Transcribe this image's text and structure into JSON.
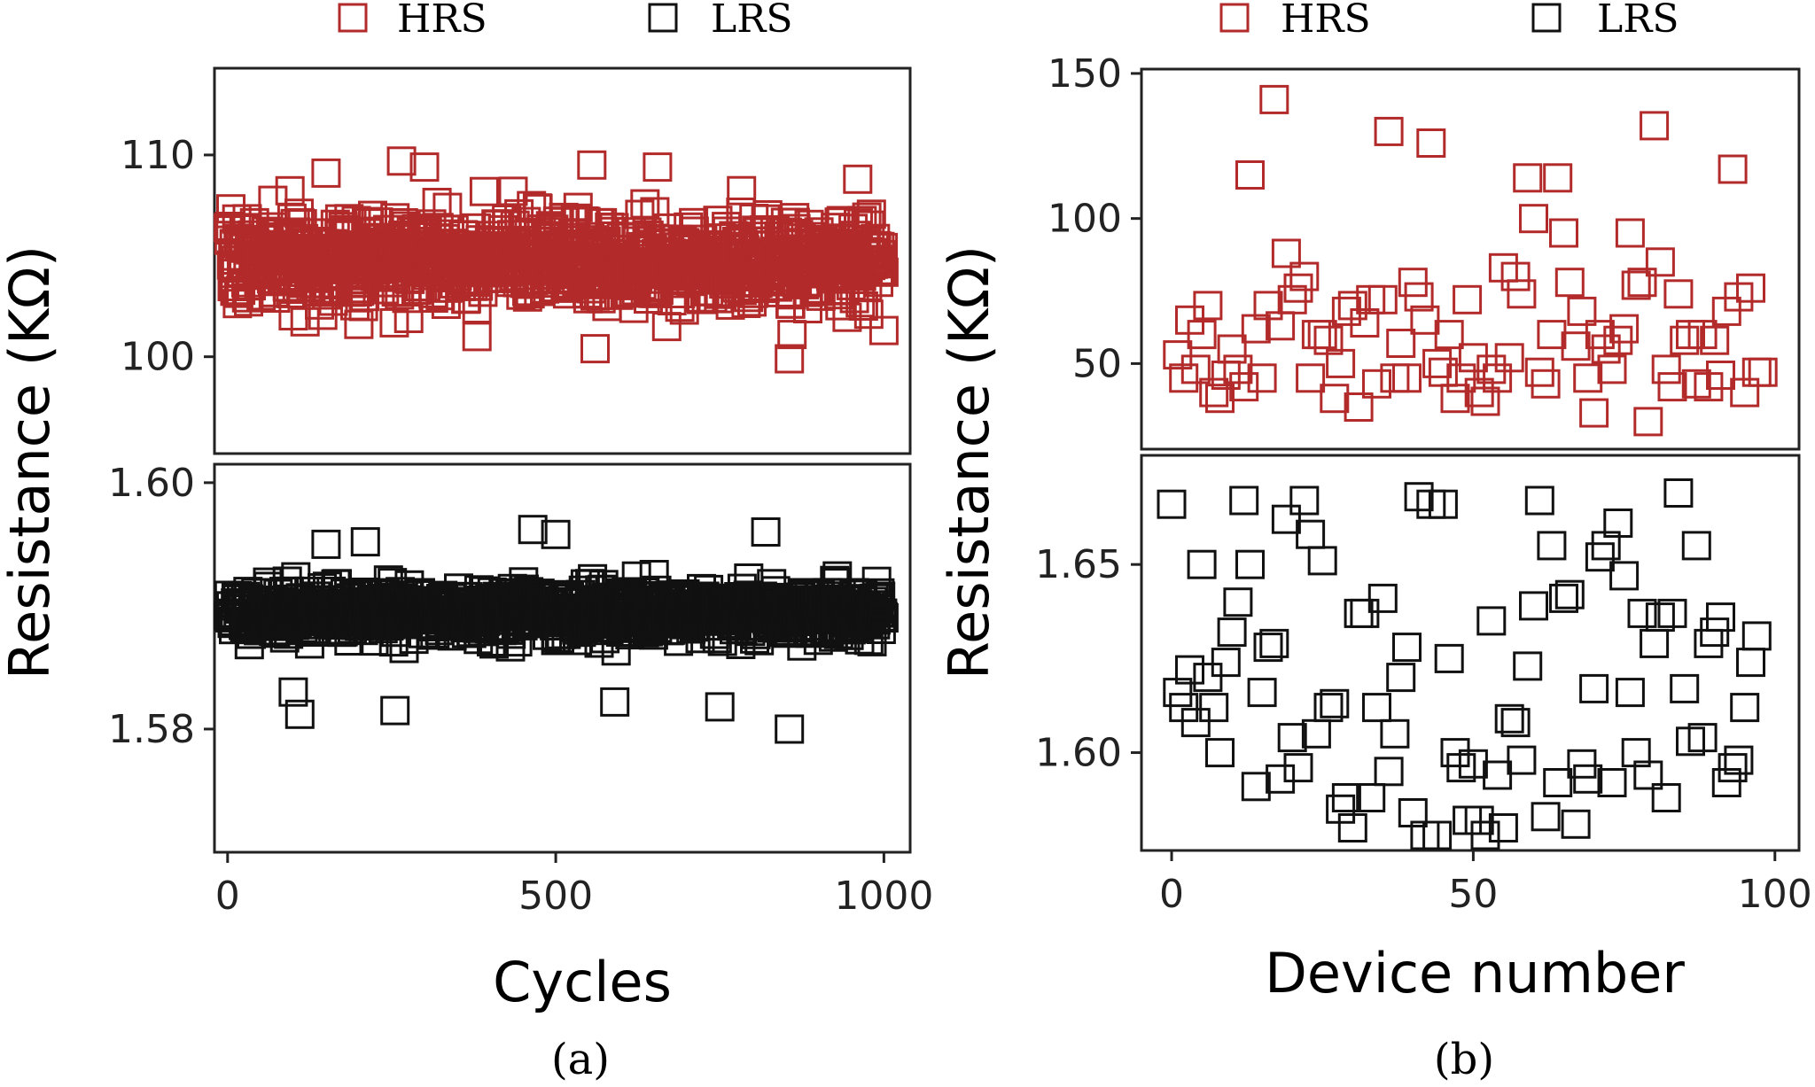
{
  "colors": {
    "hrs": "#b22a2a",
    "lrs": "#111111"
  },
  "legend": {
    "a": [
      {
        "label": "HRS",
        "color": "#b22a2a"
      },
      {
        "label": "LRS",
        "color": "#111111"
      }
    ],
    "b": [
      {
        "label": "HRS",
        "color": "#b22a2a"
      },
      {
        "label": "LRS",
        "color": "#111111"
      }
    ]
  },
  "captions": {
    "a": "(a)",
    "b": "(b)"
  },
  "chart_data": [
    {
      "id": "a",
      "type": "scatter",
      "title": "",
      "xlabel": "Cycles",
      "ylabel": "Resistance (KΩ)",
      "x_range": [
        -20,
        1040
      ],
      "x_ticks": [
        0,
        500,
        1000
      ],
      "x_tick_labels": [
        "0",
        "500",
        "1000"
      ],
      "panels": [
        {
          "name": "HRS",
          "ylim": [
            95.2,
            114.3
          ],
          "y_ticks": [
            100,
            110
          ],
          "y_tick_labels": [
            "100",
            "110"
          ],
          "generator": {
            "n": 1000,
            "x_start": 1,
            "x_end": 1000,
            "center": 104.8,
            "spread": 2.2,
            "min": 100.1,
            "max": 109.6,
            "seed": 7
          },
          "points": [
            [
              856,
              99.9
            ],
            [
              560,
              100.4
            ],
            [
              860,
              101.1
            ],
            [
              1000,
              101.3
            ],
            [
              380,
              101.0
            ],
            [
              200,
              101.6
            ],
            [
              265,
              109.7
            ],
            [
              300,
              109.4
            ],
            [
              150,
              109.1
            ],
            [
              655,
              109.4
            ],
            [
              555,
              109.5
            ],
            [
              960,
              108.8
            ]
          ]
        },
        {
          "name": "LRS",
          "ylim": [
            1.57,
            1.6015
          ],
          "y_ticks": [
            1.58,
            1.6
          ],
          "y_tick_labels": [
            "1.58",
            "1.60"
          ],
          "generator": {
            "n": 1000,
            "x_start": 1,
            "x_end": 1000,
            "center": 1.5895,
            "spread": 0.0021,
            "min": 1.5832,
            "max": 1.5955,
            "seed": 11
          },
          "points": [
            [
              856,
              1.58
            ],
            [
              110,
              1.5812
            ],
            [
              255,
              1.5815
            ],
            [
              590,
              1.5822
            ],
            [
              750,
              1.5818
            ],
            [
              100,
              1.583
            ],
            [
              500,
              1.5958
            ],
            [
              465,
              1.5962
            ],
            [
              820,
              1.596
            ],
            [
              150,
              1.595
            ],
            [
              210,
              1.5952
            ]
          ]
        }
      ]
    },
    {
      "id": "b",
      "type": "scatter",
      "title": "",
      "xlabel": "Device number",
      "ylabel": "Resistance (KΩ)",
      "x_range": [
        -5,
        104
      ],
      "x_ticks": [
        0,
        50,
        100
      ],
      "x_tick_labels": [
        "0",
        "50",
        "100"
      ],
      "panels": [
        {
          "name": "HRS",
          "ylim": [
            20.5,
            151.5
          ],
          "y_ticks": [
            50,
            100,
            150
          ],
          "y_tick_labels": [
            "50",
            "100",
            "150"
          ],
          "points": [
            [
              1,
              53
            ],
            [
              2,
              45
            ],
            [
              3,
              65
            ],
            [
              4,
              48
            ],
            [
              5,
              60
            ],
            [
              6,
              70
            ],
            [
              7,
              40
            ],
            [
              8,
              38
            ],
            [
              9,
              46
            ],
            [
              10,
              55
            ],
            [
              11,
              48
            ],
            [
              12,
              42
            ],
            [
              13,
              115
            ],
            [
              14,
              62
            ],
            [
              15,
              45
            ],
            [
              16,
              70
            ],
            [
              17,
              141
            ],
            [
              18,
              63
            ],
            [
              19,
              88
            ],
            [
              20,
              72
            ],
            [
              21,
              76
            ],
            [
              22,
              80
            ],
            [
              23,
              45
            ],
            [
              24,
              60
            ],
            [
              25,
              60
            ],
            [
              26,
              58
            ],
            [
              27,
              38
            ],
            [
              28,
              50
            ],
            [
              29,
              68
            ],
            [
              30,
              70
            ],
            [
              31,
              35
            ],
            [
              32,
              64
            ],
            [
              33,
              72
            ],
            [
              34,
              43
            ],
            [
              35,
              72
            ],
            [
              36,
              130
            ],
            [
              37,
              45
            ],
            [
              38,
              57
            ],
            [
              39,
              45
            ],
            [
              40,
              78
            ],
            [
              41,
              73
            ],
            [
              42,
              65
            ],
            [
              43,
              126
            ],
            [
              44,
              50
            ],
            [
              45,
              47
            ],
            [
              46,
              60
            ],
            [
              47,
              38
            ],
            [
              48,
              45
            ],
            [
              49,
              72
            ],
            [
              50,
              52
            ],
            [
              51,
              40
            ],
            [
              52,
              37
            ],
            [
              53,
              48
            ],
            [
              54,
              45
            ],
            [
              55,
              83
            ],
            [
              56,
              52
            ],
            [
              57,
              80
            ],
            [
              58,
              74
            ],
            [
              59,
              114
            ],
            [
              60,
              100
            ],
            [
              61,
              47
            ],
            [
              62,
              43
            ],
            [
              63,
              60
            ],
            [
              64,
              114
            ],
            [
              65,
              95
            ],
            [
              66,
              78
            ],
            [
              67,
              56
            ],
            [
              68,
              68
            ],
            [
              69,
              45
            ],
            [
              70,
              33
            ],
            [
              71,
              60
            ],
            [
              72,
              55
            ],
            [
              73,
              48
            ],
            [
              74,
              58
            ],
            [
              75,
              62
            ],
            [
              76,
              95
            ],
            [
              77,
              77
            ],
            [
              78,
              78
            ],
            [
              79,
              30
            ],
            [
              80,
              132
            ],
            [
              81,
              85
            ],
            [
              82,
              48
            ],
            [
              83,
              42
            ],
            [
              84,
              74
            ],
            [
              85,
              58
            ],
            [
              86,
              60
            ],
            [
              87,
              43
            ],
            [
              88,
              60
            ],
            [
              89,
              42
            ],
            [
              90,
              58
            ],
            [
              91,
              46
            ],
            [
              92,
              68
            ],
            [
              93,
              117
            ],
            [
              94,
              73
            ],
            [
              95,
              40
            ],
            [
              96,
              76
            ],
            [
              97,
              47
            ],
            [
              98,
              47
            ]
          ]
        },
        {
          "name": "LRS",
          "ylim": [
            1.574,
            1.679
          ],
          "y_ticks": [
            1.6,
            1.65
          ],
          "y_tick_labels": [
            "1.60",
            "1.65"
          ],
          "points": [
            [
              0,
              1.666
            ],
            [
              1,
              1.616
            ],
            [
              2,
              1.612
            ],
            [
              3,
              1.622
            ],
            [
              4,
              1.608
            ],
            [
              5,
              1.65
            ],
            [
              6,
              1.62
            ],
            [
              7,
              1.612
            ],
            [
              8,
              1.6
            ],
            [
              9,
              1.624
            ],
            [
              10,
              1.632
            ],
            [
              11,
              1.64
            ],
            [
              12,
              1.667
            ],
            [
              13,
              1.65
            ],
            [
              14,
              1.591
            ],
            [
              15,
              1.616
            ],
            [
              16,
              1.628
            ],
            [
              17,
              1.629
            ],
            [
              18,
              1.593
            ],
            [
              19,
              1.662
            ],
            [
              20,
              1.604
            ],
            [
              21,
              1.596
            ],
            [
              22,
              1.667
            ],
            [
              23,
              1.658
            ],
            [
              24,
              1.605
            ],
            [
              25,
              1.651
            ],
            [
              26,
              1.612
            ],
            [
              27,
              1.613
            ],
            [
              28,
              1.585
            ],
            [
              29,
              1.588
            ],
            [
              30,
              1.58
            ],
            [
              31,
              1.637
            ],
            [
              32,
              1.637
            ],
            [
              33,
              1.588
            ],
            [
              34,
              1.612
            ],
            [
              35,
              1.641
            ],
            [
              36,
              1.595
            ],
            [
              37,
              1.605
            ],
            [
              38,
              1.62
            ],
            [
              39,
              1.628
            ],
            [
              40,
              1.584
            ],
            [
              41,
              1.668
            ],
            [
              42,
              1.578
            ],
            [
              43,
              1.666
            ],
            [
              44,
              1.578
            ],
            [
              45,
              1.666
            ],
            [
              46,
              1.625
            ],
            [
              47,
              1.6
            ],
            [
              48,
              1.596
            ],
            [
              49,
              1.582
            ],
            [
              50,
              1.597
            ],
            [
              51,
              1.582
            ],
            [
              52,
              1.578
            ],
            [
              53,
              1.635
            ],
            [
              54,
              1.594
            ],
            [
              55,
              1.58
            ],
            [
              56,
              1.609
            ],
            [
              57,
              1.608
            ],
            [
              58,
              1.598
            ],
            [
              59,
              1.623
            ],
            [
              60,
              1.639
            ],
            [
              61,
              1.667
            ],
            [
              62,
              1.583
            ],
            [
              63,
              1.655
            ],
            [
              64,
              1.592
            ],
            [
              65,
              1.641
            ],
            [
              66,
              1.642
            ],
            [
              67,
              1.581
            ],
            [
              68,
              1.597
            ],
            [
              69,
              1.593
            ],
            [
              70,
              1.617
            ],
            [
              71,
              1.652
            ],
            [
              72,
              1.655
            ],
            [
              73,
              1.592
            ],
            [
              74,
              1.661
            ],
            [
              75,
              1.647
            ],
            [
              76,
              1.616
            ],
            [
              77,
              1.6
            ],
            [
              78,
              1.637
            ],
            [
              79,
              1.594
            ],
            [
              80,
              1.629
            ],
            [
              81,
              1.636
            ],
            [
              82,
              1.588
            ],
            [
              83,
              1.637
            ],
            [
              84,
              1.669
            ],
            [
              85,
              1.617
            ],
            [
              86,
              1.603
            ],
            [
              87,
              1.655
            ],
            [
              88,
              1.604
            ],
            [
              89,
              1.629
            ],
            [
              90,
              1.632
            ],
            [
              91,
              1.636
            ],
            [
              92,
              1.592
            ],
            [
              93,
              1.596
            ],
            [
              94,
              1.598
            ],
            [
              95,
              1.612
            ],
            [
              96,
              1.624
            ],
            [
              97,
              1.631
            ]
          ]
        }
      ]
    }
  ]
}
